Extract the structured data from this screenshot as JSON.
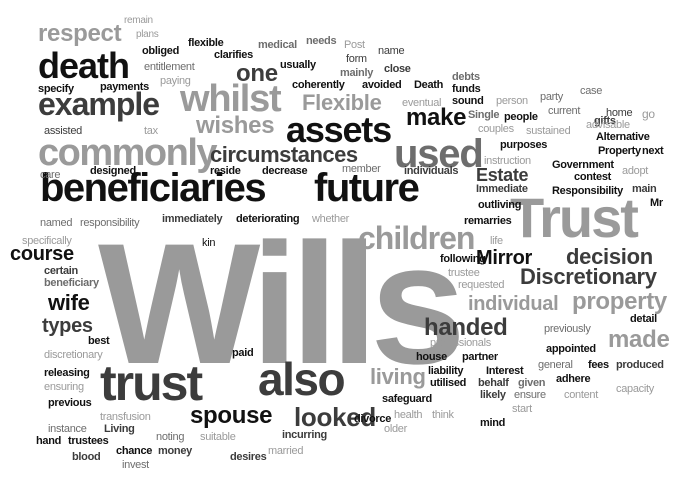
{
  "words": [
    {
      "text": "Wills",
      "color": "#9a9a9a"
    },
    {
      "text": "beneficiaries",
      "color": "#111111"
    },
    {
      "text": "future",
      "color": "#111111"
    },
    {
      "text": "Trust",
      "color": "#9a9a9a"
    },
    {
      "text": "trust",
      "color": "#3c3c3c"
    },
    {
      "text": "also",
      "color": "#3c3c3c"
    },
    {
      "text": "commonly",
      "color": "#9a9a9a"
    },
    {
      "text": "assets",
      "color": "#111111"
    },
    {
      "text": "whilst",
      "color": "#9a9a9a"
    },
    {
      "text": "example",
      "color": "#3c3c3c"
    },
    {
      "text": "death",
      "color": "#111111"
    },
    {
      "text": "used",
      "color": "#6d6d6d"
    },
    {
      "text": "children",
      "color": "#9a9a9a"
    },
    {
      "text": "make",
      "color": "#111111"
    },
    {
      "text": "circumstances",
      "color": "#3c3c3c"
    },
    {
      "text": "Flexible",
      "color": "#9a9a9a"
    },
    {
      "text": "wishes",
      "color": "#9a9a9a"
    },
    {
      "text": "one",
      "color": "#3c3c3c"
    },
    {
      "text": "respect",
      "color": "#9a9a9a"
    },
    {
      "text": "spouse",
      "color": "#111111"
    },
    {
      "text": "looked",
      "color": "#3c3c3c"
    },
    {
      "text": "living",
      "color": "#9a9a9a"
    },
    {
      "text": "handed",
      "color": "#3c3c3c"
    },
    {
      "text": "individual",
      "color": "#9a9a9a"
    },
    {
      "text": "property",
      "color": "#9a9a9a"
    },
    {
      "text": "made",
      "color": "#9a9a9a"
    },
    {
      "text": "Discretionary",
      "color": "#3c3c3c"
    },
    {
      "text": "decision",
      "color": "#3c3c3c"
    },
    {
      "text": "Mirror",
      "color": "#111111"
    },
    {
      "text": "Estate",
      "color": "#3c3c3c"
    },
    {
      "text": "course",
      "color": "#111111"
    },
    {
      "text": "wife",
      "color": "#111111"
    },
    {
      "text": "types",
      "color": "#3c3c3c"
    },
    {
      "text": "remain",
      "color": "#9a9a9a"
    },
    {
      "text": "plans",
      "color": "#9a9a9a"
    },
    {
      "text": "flexible",
      "color": "#111111"
    },
    {
      "text": "medical",
      "color": "#6d6d6d"
    },
    {
      "text": "needs",
      "color": "#6d6d6d"
    },
    {
      "text": "Post",
      "color": "#9a9a9a"
    },
    {
      "text": "name",
      "color": "#3c3c3c"
    },
    {
      "text": "obliged",
      "color": "#111111"
    },
    {
      "text": "clarifies",
      "color": "#111111"
    },
    {
      "text": "usually",
      "color": "#111111"
    },
    {
      "text": "form",
      "color": "#3c3c3c"
    },
    {
      "text": "entitlement",
      "color": "#6d6d6d"
    },
    {
      "text": "mainly",
      "color": "#6d6d6d"
    },
    {
      "text": "close",
      "color": "#3c3c3c"
    },
    {
      "text": "specify",
      "color": "#111111"
    },
    {
      "text": "payments",
      "color": "#111111"
    },
    {
      "text": "paying",
      "color": "#9a9a9a"
    },
    {
      "text": "coherently",
      "color": "#111111"
    },
    {
      "text": "avoided",
      "color": "#111111"
    },
    {
      "text": "Death",
      "color": "#111111"
    },
    {
      "text": "debts",
      "color": "#6d6d6d"
    },
    {
      "text": "funds",
      "color": "#111111"
    },
    {
      "text": "case",
      "color": "#6d6d6d"
    },
    {
      "text": "eventual",
      "color": "#9a9a9a"
    },
    {
      "text": "sound",
      "color": "#111111"
    },
    {
      "text": "person",
      "color": "#9a9a9a"
    },
    {
      "text": "party",
      "color": "#6d6d6d"
    },
    {
      "text": "current",
      "color": "#6d6d6d"
    },
    {
      "text": "Single",
      "color": "#6d6d6d"
    },
    {
      "text": "people",
      "color": "#111111"
    },
    {
      "text": "gifts",
      "color": "#3c3c3c"
    },
    {
      "text": "home",
      "color": "#3c3c3c"
    },
    {
      "text": "go",
      "color": "#9a9a9a"
    },
    {
      "text": "assisted",
      "color": "#3c3c3c"
    },
    {
      "text": "tax",
      "color": "#9a9a9a"
    },
    {
      "text": "couples",
      "color": "#9a9a9a"
    },
    {
      "text": "sustained",
      "color": "#9a9a9a"
    },
    {
      "text": "advisable",
      "color": "#9a9a9a"
    },
    {
      "text": "Alternative",
      "color": "#111111"
    },
    {
      "text": "purposes",
      "color": "#111111"
    },
    {
      "text": "Property",
      "color": "#111111"
    },
    {
      "text": "next",
      "color": "#111111"
    },
    {
      "text": "care",
      "color": "#6d6d6d"
    },
    {
      "text": "designed",
      "color": "#111111"
    },
    {
      "text": "reside",
      "color": "#111111"
    },
    {
      "text": "decrease",
      "color": "#111111"
    },
    {
      "text": "member",
      "color": "#6d6d6d"
    },
    {
      "text": "individuals",
      "color": "#3c3c3c"
    },
    {
      "text": "instruction",
      "color": "#9a9a9a"
    },
    {
      "text": "Government",
      "color": "#111111"
    },
    {
      "text": "adopt",
      "color": "#9a9a9a"
    },
    {
      "text": "contest",
      "color": "#111111"
    },
    {
      "text": "Immediate",
      "color": "#3c3c3c"
    },
    {
      "text": "Responsibility",
      "color": "#111111"
    },
    {
      "text": "main",
      "color": "#3c3c3c"
    },
    {
      "text": "outliving",
      "color": "#111111"
    },
    {
      "text": "Mr",
      "color": "#111111"
    },
    {
      "text": "named",
      "color": "#6d6d6d"
    },
    {
      "text": "responsibility",
      "color": "#6d6d6d"
    },
    {
      "text": "immediately",
      "color": "#3c3c3c"
    },
    {
      "text": "deteriorating",
      "color": "#111111"
    },
    {
      "text": "whether",
      "color": "#9a9a9a"
    },
    {
      "text": "remarries",
      "color": "#111111"
    },
    {
      "text": "specifically",
      "color": "#9a9a9a"
    },
    {
      "text": "life",
      "color": "#9a9a9a"
    },
    {
      "text": "kin",
      "color": "#111111"
    },
    {
      "text": "following",
      "color": "#111111"
    },
    {
      "text": "certain",
      "color": "#3c3c3c"
    },
    {
      "text": "beneficiary",
      "color": "#6d6d6d"
    },
    {
      "text": "trustee",
      "color": "#9a9a9a"
    },
    {
      "text": "requested",
      "color": "#9a9a9a"
    },
    {
      "text": "best",
      "color": "#111111"
    },
    {
      "text": "detail",
      "color": "#111111"
    },
    {
      "text": "discretionary",
      "color": "#9a9a9a"
    },
    {
      "text": "previously",
      "color": "#6d6d6d"
    },
    {
      "text": "professionals",
      "color": "#9a9a9a"
    },
    {
      "text": "paid",
      "color": "#111111"
    },
    {
      "text": "house",
      "color": "#111111"
    },
    {
      "text": "partner",
      "color": "#111111"
    },
    {
      "text": "appointed",
      "color": "#111111"
    },
    {
      "text": "general",
      "color": "#6d6d6d"
    },
    {
      "text": "liability",
      "color": "#111111"
    },
    {
      "text": "fees",
      "color": "#111111"
    },
    {
      "text": "produced",
      "color": "#3c3c3c"
    },
    {
      "text": "releasing",
      "color": "#111111"
    },
    {
      "text": "Interest",
      "color": "#111111"
    },
    {
      "text": "ensuring",
      "color": "#9a9a9a"
    },
    {
      "text": "utilised",
      "color": "#111111"
    },
    {
      "text": "behalf",
      "color": "#3c3c3c"
    },
    {
      "text": "given",
      "color": "#6d6d6d"
    },
    {
      "text": "adhere",
      "color": "#111111"
    },
    {
      "text": "previous",
      "color": "#111111"
    },
    {
      "text": "safeguard",
      "color": "#111111"
    },
    {
      "text": "likely",
      "color": "#3c3c3c"
    },
    {
      "text": "ensure",
      "color": "#6d6d6d"
    },
    {
      "text": "content",
      "color": "#9a9a9a"
    },
    {
      "text": "capacity",
      "color": "#9a9a9a"
    },
    {
      "text": "transfusion",
      "color": "#9a9a9a"
    },
    {
      "text": "divorce",
      "color": "#111111"
    },
    {
      "text": "health",
      "color": "#9a9a9a"
    },
    {
      "text": "think",
      "color": "#9a9a9a"
    },
    {
      "text": "start",
      "color": "#9a9a9a"
    },
    {
      "text": "instance",
      "color": "#6d6d6d"
    },
    {
      "text": "Living",
      "color": "#3c3c3c"
    },
    {
      "text": "noting",
      "color": "#6d6d6d"
    },
    {
      "text": "suitable",
      "color": "#9a9a9a"
    },
    {
      "text": "older",
      "color": "#9a9a9a"
    },
    {
      "text": "mind",
      "color": "#111111"
    },
    {
      "text": "hand",
      "color": "#111111"
    },
    {
      "text": "trustees",
      "color": "#111111"
    },
    {
      "text": "incurring",
      "color": "#3c3c3c"
    },
    {
      "text": "chance",
      "color": "#111111"
    },
    {
      "text": "money",
      "color": "#3c3c3c"
    },
    {
      "text": "married",
      "color": "#9a9a9a"
    },
    {
      "text": "blood",
      "color": "#3c3c3c"
    },
    {
      "text": "invest",
      "color": "#6d6d6d"
    },
    {
      "text": "desires",
      "color": "#3c3c3c"
    }
  ]
}
